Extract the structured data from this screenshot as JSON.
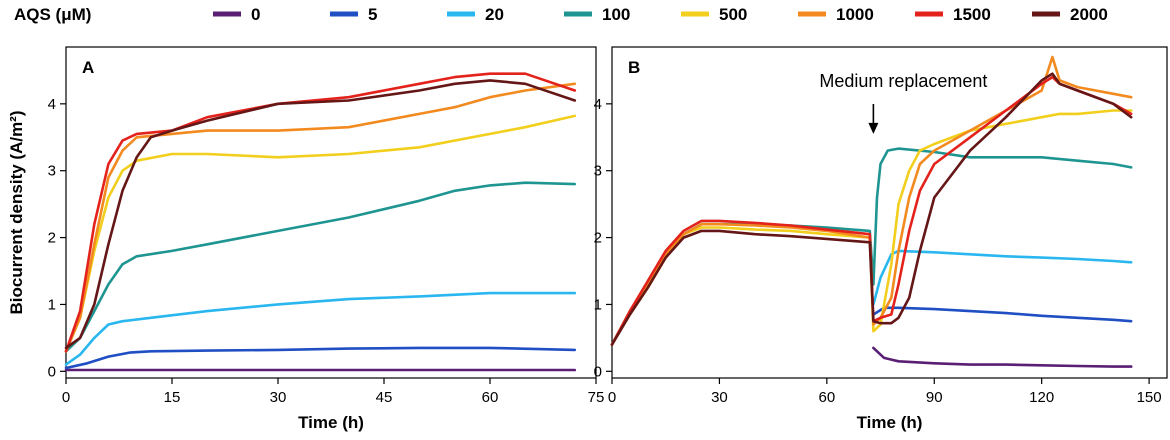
{
  "legend": {
    "title": "AQS (μM)",
    "entries": [
      {
        "label": "0",
        "color": "#5a1f75"
      },
      {
        "label": "5",
        "color": "#1f4fc2"
      },
      {
        "label": "20",
        "color": "#2ab7ef"
      },
      {
        "label": "100",
        "color": "#1f9591"
      },
      {
        "label": "500",
        "color": "#f2cf1d"
      },
      {
        "label": "1000",
        "color": "#f28a1f"
      },
      {
        "label": "1500",
        "color": "#e4221c"
      },
      {
        "label": "2000",
        "color": "#651616"
      }
    ]
  },
  "chart_data": [
    {
      "type": "line",
      "panel": "A",
      "xlabel": "Time (h)",
      "ylabel": "Biocurrent density (A/m²)",
      "xlim": [
        0,
        75
      ],
      "ylim": [
        -0.1,
        4.85
      ],
      "xticks": [
        "0",
        "15",
        "30",
        "45",
        "60",
        "75"
      ],
      "yticks": [
        "0",
        "1",
        "2",
        "3",
        "4"
      ],
      "series": [
        {
          "name": "0",
          "x": [
            0,
            5,
            10,
            20,
            40,
            60,
            72
          ],
          "y": [
            0.02,
            0.02,
            0.02,
            0.02,
            0.02,
            0.02,
            0.02
          ]
        },
        {
          "name": "5",
          "x": [
            0,
            3,
            6,
            9,
            12,
            20,
            30,
            40,
            50,
            60,
            72
          ],
          "y": [
            0.05,
            0.12,
            0.22,
            0.28,
            0.3,
            0.31,
            0.32,
            0.34,
            0.35,
            0.35,
            0.32
          ]
        },
        {
          "name": "20",
          "x": [
            0,
            2,
            4,
            6,
            8,
            12,
            20,
            30,
            40,
            50,
            60,
            72
          ],
          "y": [
            0.1,
            0.25,
            0.5,
            0.7,
            0.75,
            0.8,
            0.9,
            1.0,
            1.08,
            1.12,
            1.17,
            1.17
          ]
        },
        {
          "name": "100",
          "x": [
            0,
            2,
            4,
            6,
            8,
            10,
            15,
            20,
            30,
            40,
            50,
            55,
            60,
            65,
            72
          ],
          "y": [
            0.3,
            0.5,
            0.9,
            1.3,
            1.6,
            1.72,
            1.8,
            1.9,
            2.1,
            2.3,
            2.55,
            2.7,
            2.78,
            2.82,
            2.8
          ]
        },
        {
          "name": "500",
          "x": [
            0,
            2,
            4,
            6,
            8,
            10,
            15,
            20,
            30,
            40,
            50,
            60,
            65,
            72
          ],
          "y": [
            0.3,
            0.8,
            1.8,
            2.6,
            3.0,
            3.15,
            3.25,
            3.25,
            3.2,
            3.25,
            3.35,
            3.55,
            3.65,
            3.82
          ]
        },
        {
          "name": "1000",
          "x": [
            0,
            2,
            4,
            6,
            8,
            10,
            15,
            20,
            30,
            40,
            50,
            55,
            60,
            65,
            72
          ],
          "y": [
            0.3,
            0.8,
            1.9,
            2.9,
            3.3,
            3.5,
            3.55,
            3.6,
            3.6,
            3.65,
            3.85,
            3.95,
            4.1,
            4.2,
            4.3
          ]
        },
        {
          "name": "1500",
          "x": [
            0,
            2,
            4,
            6,
            8,
            10,
            15,
            20,
            30,
            40,
            50,
            55,
            60,
            65,
            72
          ],
          "y": [
            0.3,
            0.9,
            2.2,
            3.1,
            3.45,
            3.55,
            3.6,
            3.8,
            4.0,
            4.1,
            4.3,
            4.4,
            4.45,
            4.45,
            4.2
          ]
        },
        {
          "name": "2000",
          "x": [
            0,
            2,
            4,
            6,
            8,
            10,
            12,
            15,
            20,
            30,
            40,
            50,
            55,
            60,
            65,
            72
          ],
          "y": [
            0.35,
            0.5,
            1.0,
            1.9,
            2.7,
            3.2,
            3.5,
            3.6,
            3.75,
            4.0,
            4.05,
            4.2,
            4.3,
            4.35,
            4.3,
            4.05
          ]
        }
      ]
    },
    {
      "type": "line",
      "panel": "B",
      "xlabel": "Time (h)",
      "xlim": [
        0,
        155
      ],
      "ylim": [
        -0.1,
        4.85
      ],
      "xticks": [
        "0",
        "30",
        "60",
        "90",
        "120",
        "150"
      ],
      "yticks": [
        "0",
        "1",
        "2",
        "3",
        "4"
      ],
      "annotation": {
        "text": "Medium replacement",
        "x": 73,
        "y": 3.55
      },
      "series": [
        {
          "name": "0",
          "x": [
            73,
            76,
            80,
            90,
            100,
            110,
            120,
            130,
            140,
            145
          ],
          "y": [
            0.35,
            0.2,
            0.15,
            0.12,
            0.1,
            0.1,
            0.09,
            0.08,
            0.07,
            0.07
          ]
        },
        {
          "name": "5",
          "x": [
            73,
            76,
            80,
            90,
            100,
            110,
            120,
            130,
            140,
            145
          ],
          "y": [
            0.85,
            0.95,
            0.95,
            0.93,
            0.9,
            0.87,
            0.83,
            0.8,
            0.77,
            0.75
          ]
        },
        {
          "name": "20",
          "x": [
            73,
            75,
            78,
            80,
            90,
            100,
            110,
            120,
            130,
            140,
            145
          ],
          "y": [
            1.0,
            1.4,
            1.75,
            1.8,
            1.78,
            1.75,
            1.72,
            1.7,
            1.68,
            1.65,
            1.63
          ]
        },
        {
          "name": "100",
          "x": [
            0,
            5,
            10,
            15,
            20,
            25,
            30,
            40,
            50,
            60,
            72,
            73,
            74,
            75,
            77,
            80,
            90,
            100,
            110,
            120,
            130,
            140,
            145
          ],
          "y": [
            0.4,
            0.9,
            1.3,
            1.7,
            2.05,
            2.2,
            2.2,
            2.2,
            2.18,
            2.15,
            2.1,
            1.3,
            2.6,
            3.1,
            3.3,
            3.33,
            3.28,
            3.2,
            3.2,
            3.2,
            3.15,
            3.1,
            3.05
          ]
        },
        {
          "name": "500",
          "x": [
            0,
            5,
            10,
            15,
            20,
            25,
            30,
            40,
            50,
            60,
            72,
            73,
            75,
            78,
            80,
            83,
            86,
            90,
            100,
            110,
            120,
            125,
            130,
            140,
            145
          ],
          "y": [
            0.4,
            0.85,
            1.25,
            1.7,
            2.05,
            2.15,
            2.15,
            2.12,
            2.1,
            2.05,
            2.0,
            0.6,
            0.7,
            1.6,
            2.5,
            3.0,
            3.3,
            3.4,
            3.6,
            3.7,
            3.8,
            3.85,
            3.85,
            3.9,
            3.9
          ]
        },
        {
          "name": "1000",
          "x": [
            0,
            5,
            10,
            15,
            20,
            25,
            30,
            40,
            50,
            60,
            72,
            73,
            75,
            78,
            80,
            83,
            86,
            90,
            100,
            110,
            120,
            123,
            125,
            130,
            140,
            145
          ],
          "y": [
            0.4,
            0.9,
            1.3,
            1.75,
            2.05,
            2.2,
            2.2,
            2.18,
            2.15,
            2.1,
            2.0,
            0.7,
            0.8,
            1.1,
            1.8,
            2.6,
            3.1,
            3.3,
            3.6,
            3.9,
            4.2,
            4.7,
            4.35,
            4.25,
            4.15,
            4.1
          ]
        },
        {
          "name": "1500",
          "x": [
            0,
            5,
            10,
            15,
            20,
            25,
            30,
            40,
            50,
            60,
            72,
            73,
            75,
            78,
            80,
            83,
            86,
            90,
            100,
            110,
            120,
            123,
            125,
            130,
            140,
            145
          ],
          "y": [
            0.4,
            0.9,
            1.35,
            1.8,
            2.1,
            2.25,
            2.25,
            2.22,
            2.18,
            2.12,
            2.05,
            0.75,
            0.8,
            0.85,
            1.3,
            2.1,
            2.7,
            3.1,
            3.5,
            3.9,
            4.3,
            4.4,
            4.3,
            4.2,
            4.0,
            3.85
          ]
        },
        {
          "name": "2000",
          "x": [
            0,
            5,
            10,
            15,
            20,
            25,
            30,
            40,
            50,
            60,
            72,
            73,
            75,
            78,
            80,
            83,
            86,
            90,
            100,
            110,
            120,
            123,
            125,
            130,
            140,
            145
          ],
          "y": [
            0.4,
            0.85,
            1.25,
            1.7,
            2.0,
            2.1,
            2.1,
            2.05,
            2.02,
            1.98,
            1.93,
            0.75,
            0.72,
            0.72,
            0.8,
            1.1,
            1.8,
            2.6,
            3.3,
            3.8,
            4.35,
            4.45,
            4.3,
            4.2,
            4.0,
            3.8
          ]
        }
      ]
    }
  ]
}
